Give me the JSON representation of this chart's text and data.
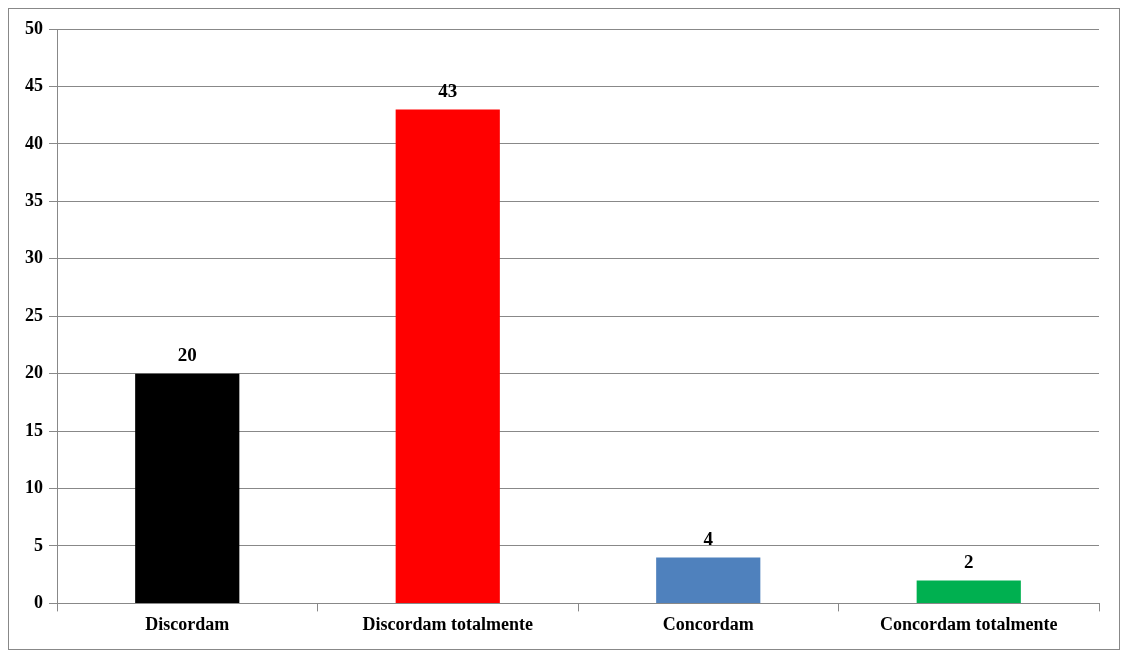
{
  "chart_data": {
    "type": "bar",
    "categories": [
      "Discordam",
      "Discordam totalmente",
      "Concordam",
      "Concordam totalmente"
    ],
    "values": [
      20,
      43,
      4,
      2
    ],
    "colors": [
      "#000000",
      "#ff0000",
      "#4f81bd",
      "#00b050"
    ],
    "ylim": [
      0,
      50
    ],
    "yticks": [
      0,
      5,
      10,
      15,
      20,
      25,
      30,
      35,
      40,
      45,
      50
    ],
    "grid": "y",
    "legend": false,
    "data_labels": true
  }
}
